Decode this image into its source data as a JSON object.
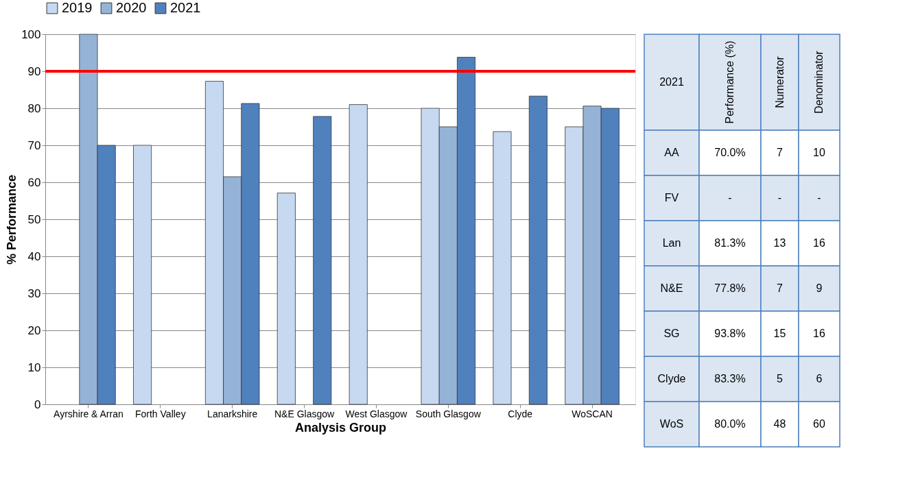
{
  "chart_data": [
    {
      "type": "bar",
      "xlabel": "Analysis Group",
      "ylabel": "% Performance",
      "categories": [
        "Ayrshire & Arran",
        "Forth Valley",
        "Lanarkshire",
        "N&E Glasgow",
        "West Glasgow",
        "South Glasgow",
        "Clyde",
        "WoSCAN"
      ],
      "series": [
        {
          "name": "2019",
          "color": "#c6d9f1",
          "values": [
            null,
            70,
            87.3,
            57.1,
            81,
            80,
            73.7,
            75
          ]
        },
        {
          "name": "2020",
          "color": "#95b3d7",
          "values": [
            100,
            null,
            61.5,
            null,
            null,
            75,
            null,
            80.6
          ]
        },
        {
          "name": "2021",
          "color": "#4f81bd",
          "values": [
            70,
            null,
            81.3,
            77.8,
            null,
            93.8,
            83.3,
            80
          ]
        }
      ],
      "ylim": [
        0,
        100
      ],
      "yticks": [
        0,
        10,
        20,
        30,
        40,
        50,
        60,
        70,
        80,
        90,
        100
      ],
      "grid": "y",
      "legend": "top",
      "ref_lines": [
        {
          "axis": "y",
          "value": 90,
          "color": "#ff0000"
        }
      ]
    },
    {
      "type": "other",
      "annotations": [
        "2021",
        "Performance (%)",
        "Numerator",
        "Denominator",
        "AA",
        "70.0%",
        "7",
        "10",
        "FV",
        "-",
        "-",
        "-",
        "Lan",
        "81.3%",
        "13",
        "16",
        "N&E",
        "77.8%",
        "7",
        "9",
        "SG",
        "93.8%",
        "15",
        "16",
        "Clyde",
        "83.3%",
        "5",
        "6",
        "WoS",
        "80.0%",
        "48",
        "60"
      ]
    }
  ]
}
